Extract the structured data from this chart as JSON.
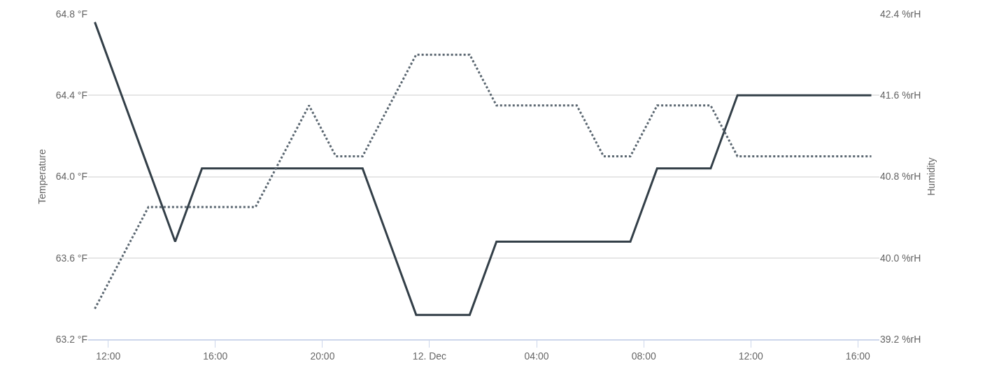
{
  "chart_data": {
    "type": "line",
    "ylabel": "Temperature",
    "y2label": "Humidity",
    "x": [
      "--12-11T11:30",
      "--12-11T12:30",
      "--12-11T13:30",
      "--12-11T14:30",
      "--12-11T15:30",
      "--12-11T16:30",
      "--12-11T17:30",
      "--12-11T18:30",
      "--12-11T19:30",
      "--12-11T20:30",
      "--12-11T21:30",
      "--12-11T22:30",
      "--12-11T23:30",
      "--12-12T00:30",
      "--12-12T01:30",
      "--12-12T02:30",
      "--12-12T03:30",
      "--12-12T04:30",
      "--12-12T05:30",
      "--12-12T06:30",
      "--12-12T07:30",
      "--12-12T08:30",
      "--12-12T09:30",
      "--12-12T10:30",
      "--12-12T11:30",
      "--12-12T12:30",
      "--12-12T13:30",
      "--12-12T14:30",
      "--12-12T15:30",
      "--12-12T16:30"
    ],
    "series": [
      {
        "color": "#333f48",
        "line_style": "solid",
        "values": [
          64.76,
          64.4,
          64.04,
          63.68,
          64.04,
          64.04,
          64.04,
          64.04,
          64.04,
          64.04,
          64.04,
          63.68,
          63.32,
          63.32,
          63.32,
          63.68,
          63.68,
          63.68,
          63.68,
          63.68,
          63.68,
          64.04,
          64.04,
          64.04,
          64.4,
          64.4,
          64.4,
          64.4,
          64.4,
          64.4
        ]
      },
      {
        "color": "#5a6670",
        "line_style": "dotted",
        "axis": "y2",
        "values": [
          39.5,
          40.0,
          40.5,
          40.5,
          40.5,
          40.5,
          40.5,
          41.0,
          41.5,
          41.0,
          41.0,
          41.5,
          42.0,
          42.0,
          42.0,
          41.5,
          41.5,
          41.5,
          41.5,
          41.0,
          41.0,
          41.5,
          41.5,
          41.5,
          41.0,
          41.0,
          41.0,
          41.0,
          41.0,
          41.0
        ]
      }
    ],
    "xlim": [
      "--12-11T11:15",
      "--12-12T16:48"
    ],
    "xticks": [
      {
        "value": "--12-11T12:00",
        "label": "12:00"
      },
      {
        "value": "--12-11T16:00",
        "label": "16:00"
      },
      {
        "value": "--12-11T20:00",
        "label": "20:00"
      },
      {
        "value": "--12-12T00:00",
        "label": "12. Dec"
      },
      {
        "value": "--12-12T04:00",
        "label": "04:00"
      },
      {
        "value": "--12-12T08:00",
        "label": "08:00"
      },
      {
        "value": "--12-12T12:00",
        "label": "12:00"
      },
      {
        "value": "--12-12T16:00",
        "label": "16:00"
      }
    ],
    "ylim": [
      63.2,
      64.8
    ],
    "yticks": [
      {
        "value": 63.2,
        "label": "63.2 °F"
      },
      {
        "value": 63.6,
        "label": "63.6 °F"
      },
      {
        "value": 64.0,
        "label": "64.0 °F"
      },
      {
        "value": 64.4,
        "label": "64.4 °F"
      },
      {
        "value": 64.8,
        "label": "64.8 °F"
      }
    ],
    "y2lim": [
      39.2,
      42.4
    ],
    "y2ticks": [
      {
        "value": 39.2,
        "label": "39.2 %rH"
      },
      {
        "value": 40.0,
        "label": "40.0 %rH"
      },
      {
        "value": 40.8,
        "label": "40.8 %rH"
      },
      {
        "value": 41.6,
        "label": "41.6 %rH"
      },
      {
        "value": 42.4,
        "label": "42.4 %rH"
      }
    ],
    "grid": "y",
    "marker": "none"
  }
}
